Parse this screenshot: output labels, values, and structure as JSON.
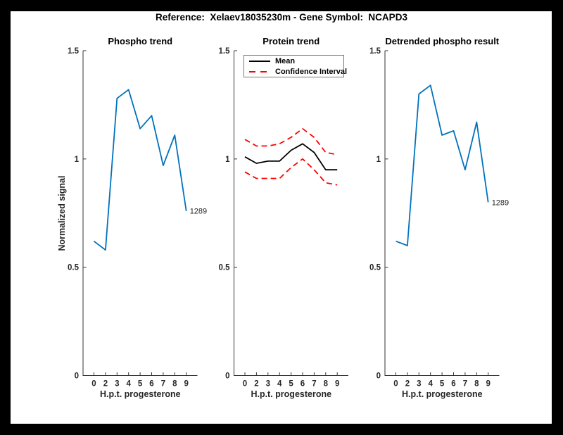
{
  "figure": {
    "title": "Reference:  Xelaev18035230m - Gene Symbol:  NCAPD3",
    "frame_color": "#000000",
    "canvas_color": "#ffffff"
  },
  "colors": {
    "phospho_line": "#0072BD",
    "mean_line": "#000000",
    "confidence_line": "#FF0000",
    "axis": "#333333",
    "tick_label": "#262626"
  },
  "axes_shared": {
    "xlabel": "H.p.t. progesterone",
    "ylabel": "Normalized signal",
    "x_tick_labels": [
      "0",
      "2",
      "3",
      "4",
      "5",
      "6",
      "7",
      "8",
      "9"
    ],
    "y_tick_values": [
      0,
      0.5,
      1,
      1.5
    ],
    "y_tick_labels": [
      "0",
      "0.5",
      "1",
      "1.5"
    ],
    "ylim": [
      0,
      1.5
    ],
    "grid": "off"
  },
  "legend": {
    "position": "top-left-of-middle-plot",
    "entries": [
      {
        "label": "Mean",
        "style": "solid",
        "color": "#000000"
      },
      {
        "label": "Confidence Interval",
        "style": "dashed",
        "color": "#FF0000"
      }
    ]
  },
  "chart_data": [
    {
      "type": "line",
      "title": "Phospho trend",
      "xlabel": "H.p.t. progesterone",
      "ylabel": "Normalized signal",
      "categories": [
        "0",
        "2",
        "3",
        "4",
        "5",
        "6",
        "7",
        "8",
        "9"
      ],
      "ylim": [
        0,
        1.5
      ],
      "series": [
        {
          "name": "Phospho signal",
          "color": "#0072BD",
          "style": "solid",
          "values": [
            0.62,
            0.58,
            1.28,
            1.32,
            1.14,
            1.2,
            0.97,
            1.11,
            0.76
          ],
          "end_label": "1289"
        }
      ]
    },
    {
      "type": "line",
      "title": "Protein trend",
      "xlabel": "H.p.t. progesterone",
      "ylabel": "",
      "categories": [
        "0",
        "2",
        "3",
        "4",
        "5",
        "6",
        "7",
        "8",
        "9"
      ],
      "ylim": [
        0,
        1.5
      ],
      "series": [
        {
          "name": "Mean",
          "color": "#000000",
          "style": "solid",
          "values": [
            1.01,
            0.98,
            0.99,
            0.99,
            1.04,
            1.07,
            1.03,
            0.95,
            0.95
          ]
        },
        {
          "name": "Confidence Interval upper",
          "color": "#FF0000",
          "style": "dashed",
          "values": [
            1.09,
            1.06,
            1.06,
            1.07,
            1.1,
            1.14,
            1.1,
            1.03,
            1.02
          ]
        },
        {
          "name": "Confidence Interval lower",
          "color": "#FF0000",
          "style": "dashed",
          "values": [
            0.94,
            0.91,
            0.91,
            0.91,
            0.96,
            1.0,
            0.95,
            0.89,
            0.88
          ]
        }
      ]
    },
    {
      "type": "line",
      "title": "Detrended phospho result",
      "xlabel": "H.p.t. progesterone",
      "ylabel": "",
      "categories": [
        "0",
        "2",
        "3",
        "4",
        "5",
        "6",
        "7",
        "8",
        "9"
      ],
      "ylim": [
        0,
        1.5
      ],
      "series": [
        {
          "name": "Detrended phospho signal",
          "color": "#0072BD",
          "style": "solid",
          "values": [
            0.62,
            0.6,
            1.3,
            1.34,
            1.11,
            1.13,
            0.95,
            1.17,
            0.8
          ],
          "end_label": "1289"
        }
      ]
    }
  ]
}
